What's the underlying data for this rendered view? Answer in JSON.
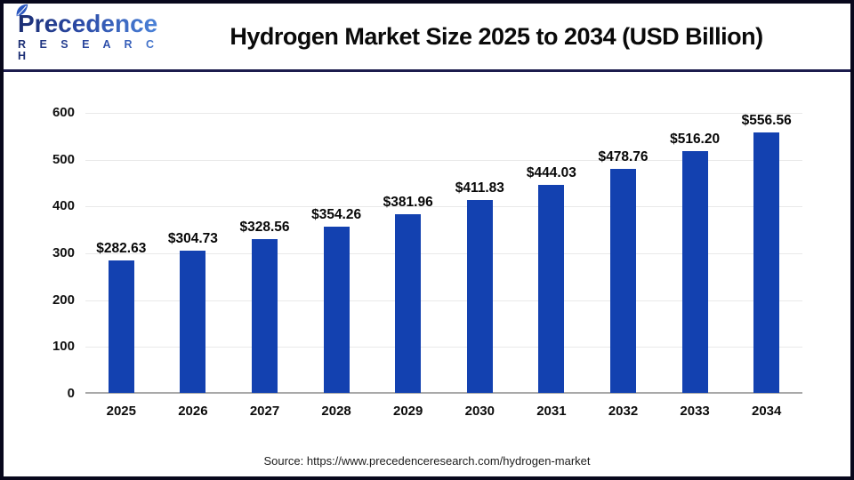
{
  "logo": {
    "name": "Precedence",
    "subname": "R E S E A R C H"
  },
  "header": {
    "title": "Hydrogen Market Size 2025 to 2034 (USD Billion)"
  },
  "footer": {
    "source": "Source: https://www.precedenceresearch.com/hydrogen-market"
  },
  "colors": {
    "bar": "#1341b0",
    "gridline": "#e9e9e9",
    "baseline": "#a9a9a9",
    "separator": "#1c1c4e",
    "frame_border": "#08081c",
    "logo_navy": "#1b2d72",
    "logo_blue": "#4b82d8"
  },
  "chart_data": {
    "type": "bar",
    "title": "Hydrogen Market Size 2025 to 2034 (USD Billion)",
    "categories": [
      "2025",
      "2026",
      "2027",
      "2028",
      "2029",
      "2030",
      "2031",
      "2032",
      "2033",
      "2034"
    ],
    "values": [
      282.63,
      304.73,
      328.56,
      354.26,
      381.96,
      411.83,
      444.03,
      478.76,
      516.2,
      556.56
    ],
    "value_labels": [
      "$282.63",
      "$304.73",
      "$328.56",
      "$354.26",
      "$381.96",
      "$411.83",
      "$444.03",
      "$478.76",
      "$516.20",
      "$556.56"
    ],
    "xlabel": "",
    "ylabel": "",
    "ylim": [
      0,
      600
    ],
    "yticks": [
      0,
      100,
      200,
      300,
      400,
      500,
      600
    ],
    "grid": true,
    "legend": false,
    "bar_color": "#1341b0",
    "currency_prefix": "$"
  }
}
